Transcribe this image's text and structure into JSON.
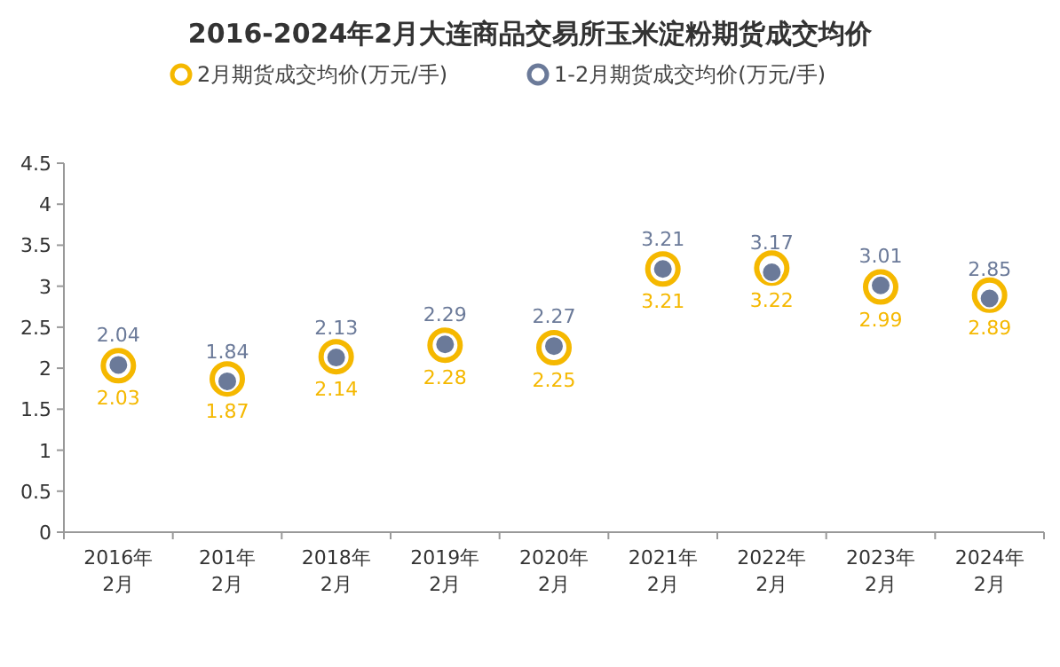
{
  "chart_data": {
    "type": "scatter",
    "title": "2016-2024年2月大连商品交易所玉米淀粉期货成交均价",
    "categories": [
      "2016年 2月",
      "201年 2月",
      "2018年 2月",
      "2019年 2月",
      "2020年 2月",
      "2021年 2月",
      "2022年 2月",
      "2023年 2月",
      "2024年 2月"
    ],
    "series": [
      {
        "name": "2月期货成交均价(万元/手)",
        "color": "#f5b800",
        "values": [
          2.03,
          1.87,
          2.14,
          2.28,
          2.25,
          3.21,
          3.22,
          2.99,
          2.89
        ]
      },
      {
        "name": "1-2月期货成交均价(万元/手)",
        "color": "#6b7a99",
        "values": [
          2.04,
          1.84,
          2.13,
          2.29,
          2.27,
          3.21,
          3.17,
          3.01,
          2.85
        ]
      }
    ],
    "ylim": [
      0,
      4.5
    ],
    "yticks": [
      0,
      0.5,
      1,
      1.5,
      2,
      2.5,
      3,
      3.5,
      4,
      4.5
    ],
    "data_labels": true,
    "legend": "top",
    "marker": "circle",
    "grid": false
  }
}
